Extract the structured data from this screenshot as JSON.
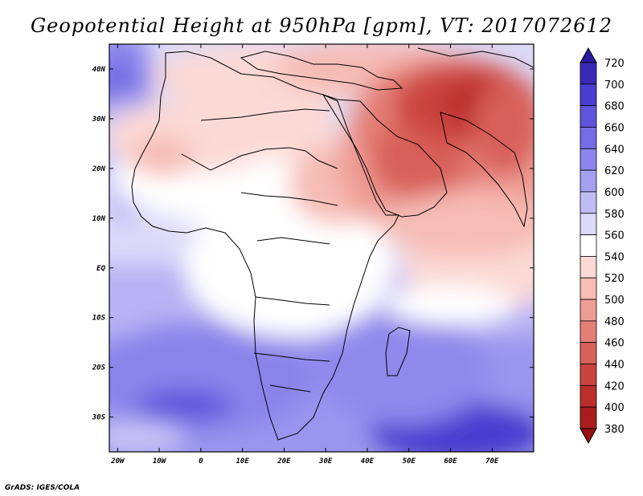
{
  "title": "Geopotential Height at 950hPa [gpm], VT: 2017072612",
  "footer": "GrADS: IGES/COLA",
  "map": {
    "lat_labels": [
      "40N",
      "30N",
      "20N",
      "10N",
      "EQ",
      "10S",
      "20S",
      "30S"
    ],
    "lon_labels": [
      "20W",
      "10W",
      "0",
      "10E",
      "20E",
      "30E",
      "40E",
      "50E",
      "60E",
      "70E"
    ],
    "lat_range": [
      -37,
      45
    ],
    "lon_range": [
      -22,
      80
    ]
  },
  "colorbar": {
    "levels": [
      "720",
      "700",
      "680",
      "660",
      "640",
      "620",
      "600",
      "580",
      "560",
      "540",
      "520",
      "500",
      "480",
      "460",
      "440",
      "420",
      "400",
      "380"
    ],
    "colors": [
      "#2a1aa0",
      "#3a2ab8",
      "#4a3ed0",
      "#5f55dc",
      "#756de6",
      "#8c86ec",
      "#a5a1f1",
      "#c0bdf5",
      "#dcdaf9",
      "#ffffff",
      "#fbd9d5",
      "#f6bcb5",
      "#ee9d95",
      "#e47f76",
      "#d8615a",
      "#cb4540",
      "#bb2e2c",
      "#a91d1e",
      "#941112"
    ]
  },
  "legend_items": []
}
